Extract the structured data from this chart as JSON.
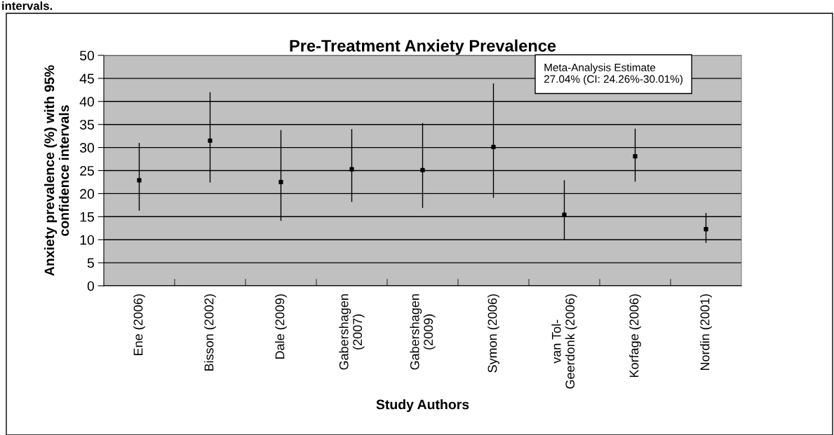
{
  "chart_data": {
    "type": "scatter",
    "title": "Pre-Treatment Anxiety Prevalence",
    "xlabel": "Study Authors",
    "ylabel": "Anxiety prevalence (%) with 95%\nconfidence intervals",
    "categories": [
      "Ene (2006)",
      "Bisson (2002)",
      "Dale (2009)",
      "Gabershagen\n(2007)",
      "Gabershagen\n(2009)",
      "Symon (2006)",
      "van Tol-\nGeerdonk (2006)",
      "Korfage (2006)",
      "Nordin (2001)"
    ],
    "series": [
      {
        "color": "#000000",
        "values": [
          22.9,
          31.5,
          22.5,
          25.3,
          25.1,
          30.1,
          15.4,
          28.1,
          12.3
        ],
        "errors": [
          [
            16.3,
            31.0
          ],
          [
            22.4,
            42.0
          ],
          [
            14.1,
            33.8
          ],
          [
            18.2,
            34.0
          ],
          [
            16.9,
            35.3
          ],
          [
            19.1,
            43.9
          ],
          [
            9.9,
            22.9
          ],
          [
            22.6,
            34.1
          ],
          [
            9.3,
            15.8
          ]
        ]
      }
    ],
    "ylim": [
      0,
      50
    ],
    "yticks": [
      0,
      5,
      10,
      15,
      20,
      25,
      30,
      35,
      40,
      45,
      50
    ],
    "grid": "y",
    "marker": "square",
    "legend": false,
    "annotations": [
      "Meta-Analysis Estimate\n27.04% (CI: 24.26%-30.01%)",
      "intervals."
    ]
  }
}
